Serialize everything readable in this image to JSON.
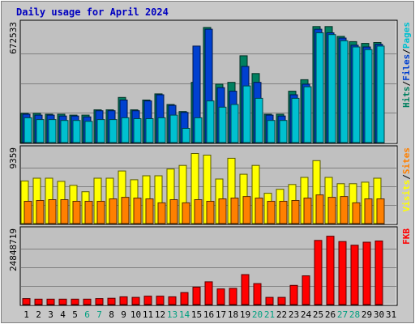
{
  "chart_data": {
    "type": "bar",
    "title": "Daily usage for April 2024",
    "categories": [
      "1",
      "2",
      "3",
      "4",
      "5",
      "6",
      "7",
      "8",
      "9",
      "10",
      "11",
      "12",
      "13",
      "14",
      "15",
      "16",
      "17",
      "18",
      "19",
      "20",
      "21",
      "22",
      "23",
      "24",
      "25",
      "26",
      "27",
      "28",
      "29",
      "30",
      "31"
    ],
    "weekend_days": [
      "6",
      "7",
      "13",
      "14",
      "20",
      "21",
      "27",
      "28"
    ],
    "panels": [
      {
        "key": "hits",
        "ymax_label": "672533",
        "ymax": 672533,
        "legend": [
          "Pages",
          "/",
          "Files",
          "/",
          "Hits"
        ],
        "legend_colors": [
          "#00c0d0",
          "#000000",
          "#0040d0",
          "#000000",
          "#008060"
        ],
        "series": [
          {
            "name": "Hits",
            "color": "#008060",
            "values": [
              165000,
              165000,
              160000,
              160000,
              155000,
              155000,
              185000,
              185000,
              255000,
              185000,
              240000,
              275000,
              215000,
              175000,
              340000,
              650000,
              330000,
              340000,
              490000,
              390000,
              160000,
              160000,
              290000,
              355000,
              655000,
              655000,
              600000,
              570000,
              560000,
              565000,
              0
            ]
          },
          {
            "name": "Files",
            "color": "#0040d0",
            "values": [
              160000,
              155000,
              155000,
              150000,
              150000,
              145000,
              180000,
              180000,
              240000,
              180000,
              235000,
              270000,
              210000,
              170000,
              545000,
              640000,
              310000,
              290000,
              430000,
              340000,
              155000,
              150000,
              270000,
              330000,
              640000,
              620000,
              590000,
              550000,
              540000,
              555000,
              0
            ]
          },
          {
            "name": "Pages",
            "color": "#00c0d0",
            "values": [
              140000,
              130000,
              130000,
              125000,
              125000,
              120000,
              130000,
              130000,
              140000,
              135000,
              135000,
              140000,
              155000,
              80000,
              140000,
              235000,
              200000,
              215000,
              320000,
              250000,
              125000,
              125000,
              250000,
              315000,
              620000,
              610000,
              575000,
              540000,
              525000,
              545000,
              0
            ]
          }
        ]
      },
      {
        "key": "visits",
        "ymax_label": "9359",
        "ymax": 9359,
        "legend": [
          "Sites",
          "/",
          "Visits"
        ],
        "legend_colors": [
          "#ff8000",
          "#000000",
          "#ffff00"
        ],
        "series": [
          {
            "name": "Visits",
            "color": "#ffff00",
            "values": [
              5350,
              5700,
              5700,
              5300,
              4800,
              4000,
              5700,
              5700,
              6600,
              5500,
              6000,
              6000,
              6850,
              7300,
              8800,
              8600,
              5600,
              8200,
              6200,
              7300,
              3800,
              4300,
              4900,
              5800,
              7900,
              5800,
              5000,
              5000,
              5200,
              5700,
              0
            ]
          },
          {
            "name": "Sites",
            "color": "#ff8000",
            "values": [
              2800,
              2900,
              3000,
              3000,
              2800,
              2800,
              2800,
              3100,
              3300,
              3200,
              3100,
              2600,
              3000,
              2600,
              3000,
              2800,
              3100,
              3200,
              3400,
              3200,
              2800,
              2800,
              2900,
              3200,
              3600,
              3300,
              3400,
              2600,
              3100,
              3100,
              0
            ]
          }
        ]
      },
      {
        "key": "kbytes",
        "ymax_label": "24848719",
        "ymax": 24848719,
        "legend": [
          "KB",
          "F"
        ],
        "legend_colors": [
          "#ff0000",
          "#ff0000"
        ],
        "series": [
          {
            "name": "KBytes",
            "color": "#ff0000",
            "values": [
              2000000,
              1800000,
              1800000,
              1800000,
              1800000,
              1800000,
              2000000,
              2100000,
              2600000,
              2400000,
              2800000,
              2800000,
              2600000,
              4000000,
              5800000,
              7600000,
              5200000,
              5400000,
              10000000,
              7000000,
              2400000,
              2400000,
              6400000,
              9600000,
              21400000,
              22800000,
              21000000,
              19800000,
              20800000,
              21200000,
              0
            ]
          }
        ]
      }
    ]
  }
}
